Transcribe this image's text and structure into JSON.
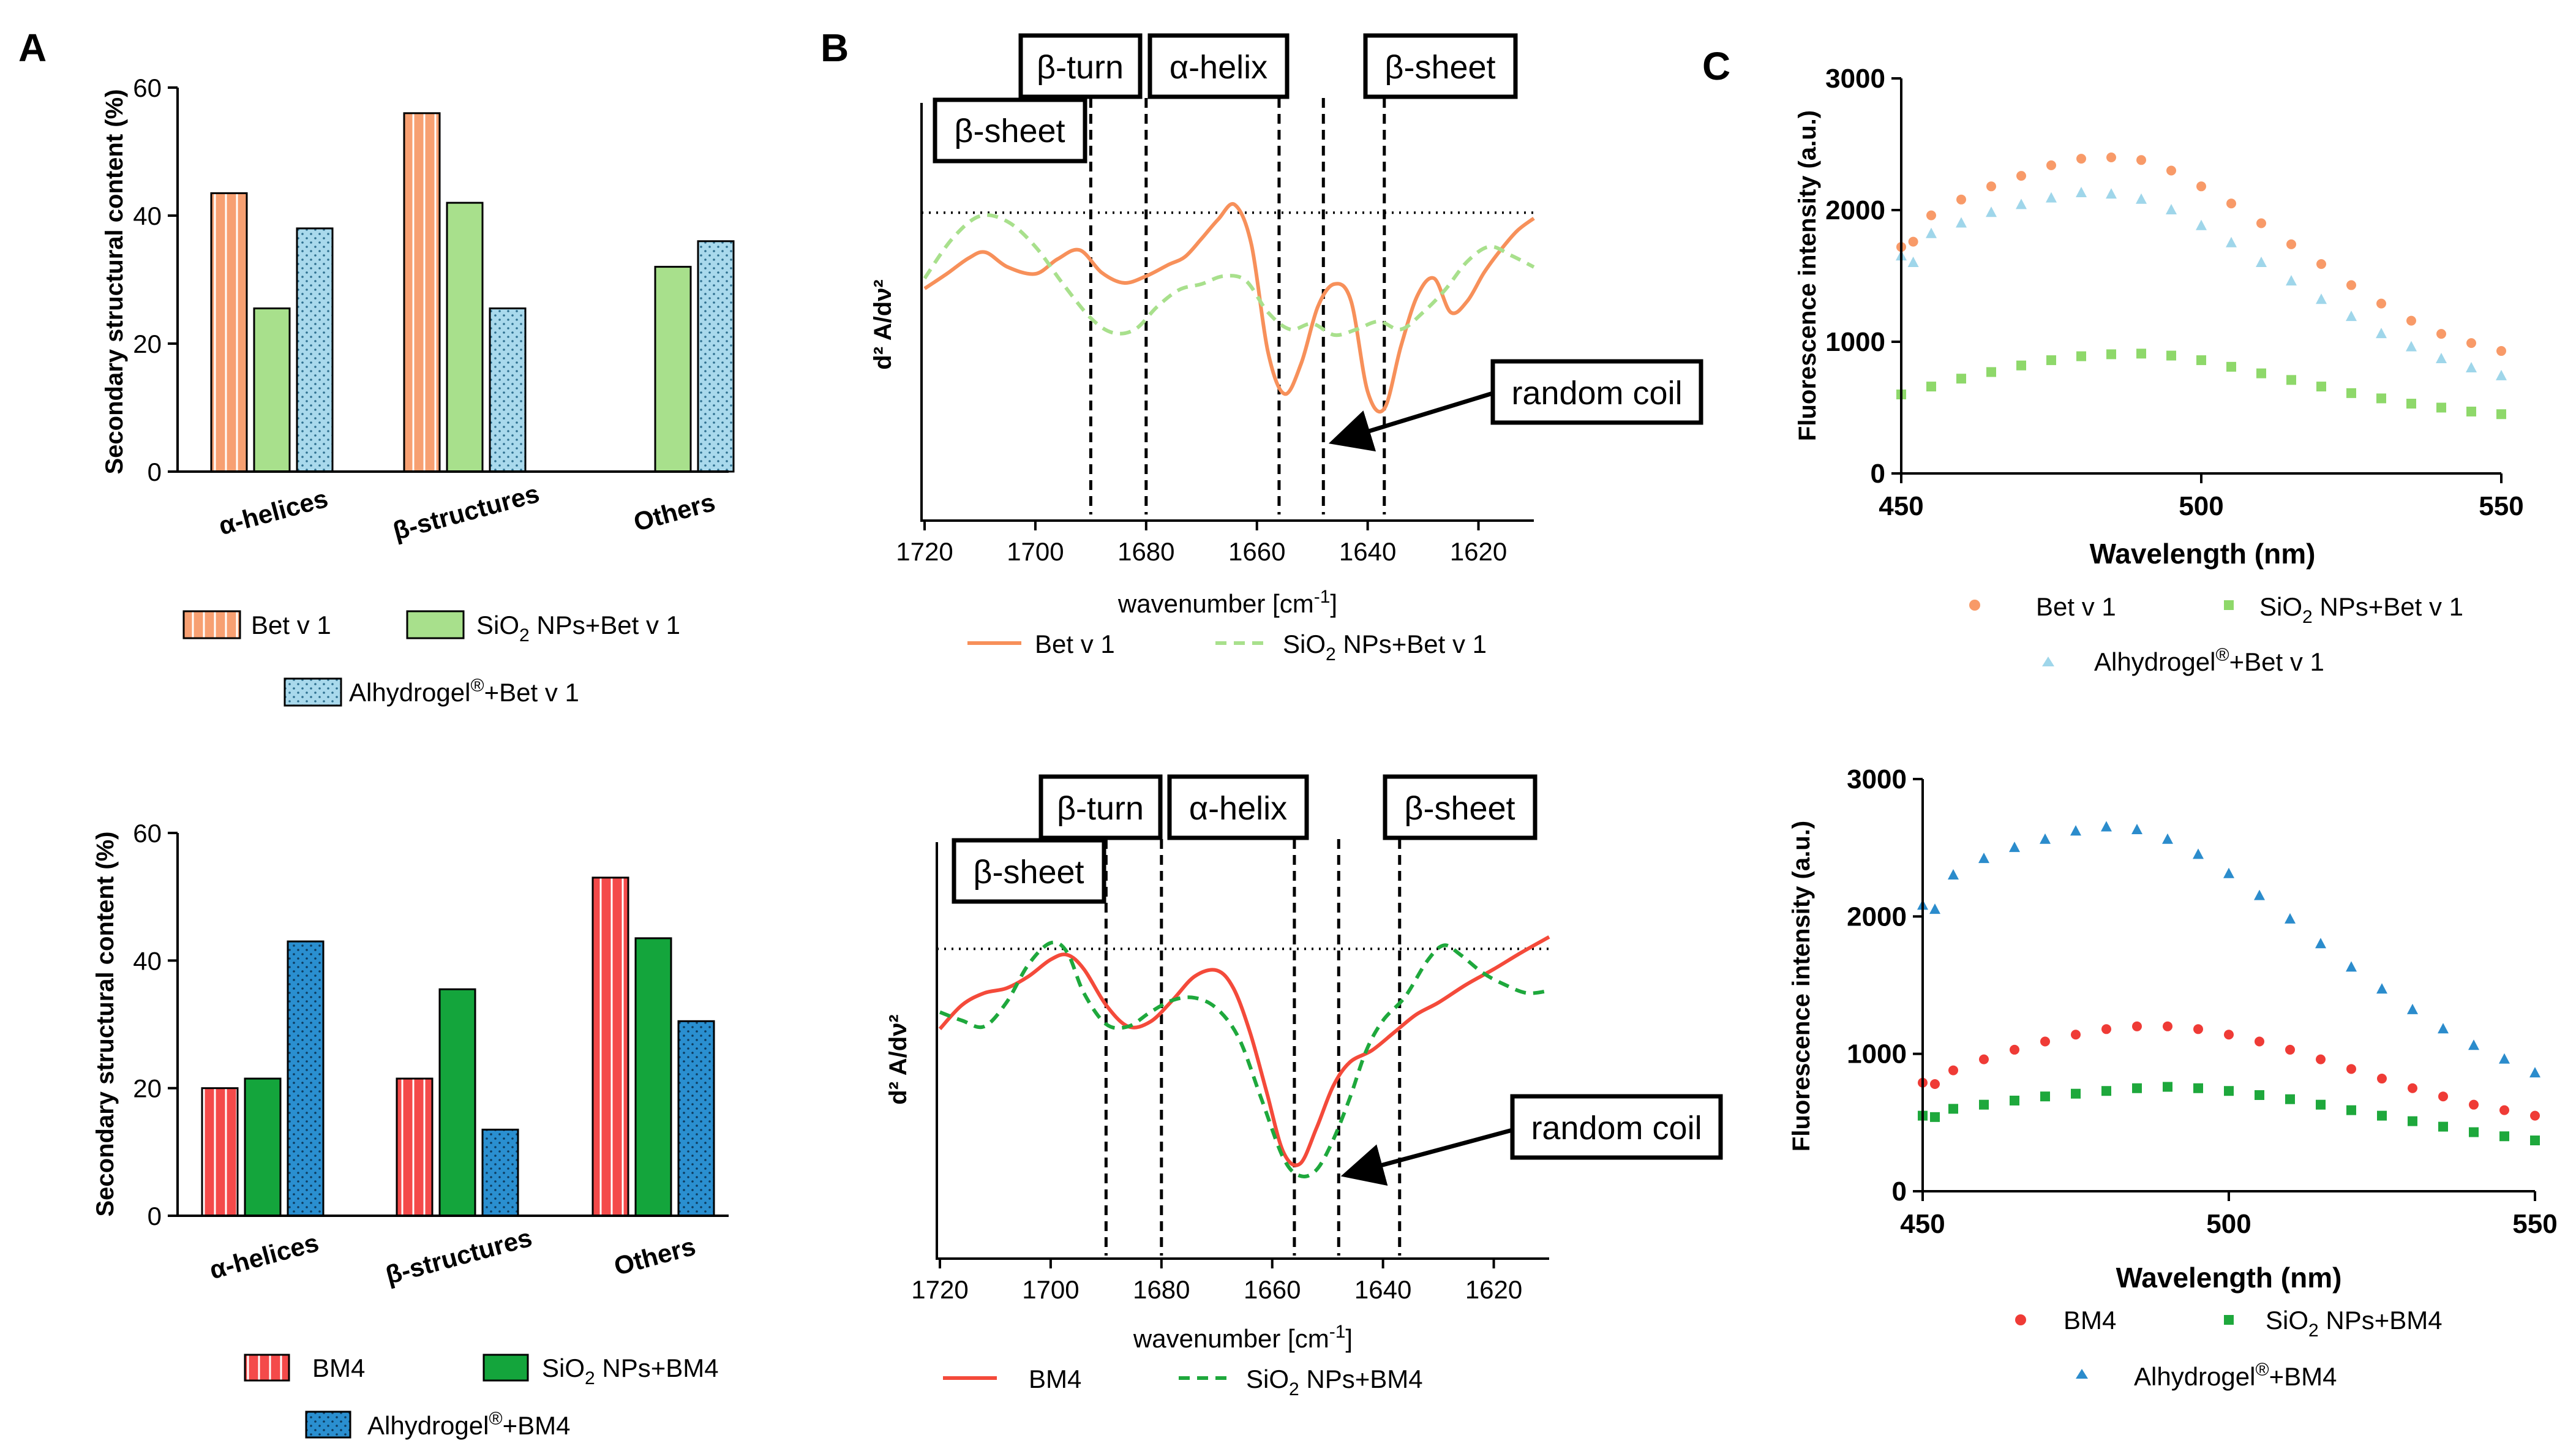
{
  "panel_labels": [
    "A",
    "B",
    "C"
  ],
  "colors": {
    "bet_orange": "#f7a072",
    "bet_green": "#a8e08c",
    "bet_blue": "#a9d9ec",
    "bm4_red": "#f44a4a",
    "bm4_green": "#14a53c",
    "bm4_blue": "#2a8fd0",
    "fluor_bet": "#f89a68",
    "fluor_bet_sio2": "#8ed86a",
    "fluor_bet_alhy": "#9fd6ea",
    "fluor_bm4": "#ef3b36",
    "fluor_bm4_sio2": "#1ea83c",
    "fluor_bm4_alhy": "#2b8ccc"
  },
  "chart_data": [
    {
      "id": "A-top",
      "type": "bar",
      "ylabel": "Secondary structural content (%)",
      "ylim": [
        0,
        60
      ],
      "yticks": [
        "0",
        "20",
        "40",
        "60"
      ],
      "categories": [
        "α-helices",
        "β-structures",
        "Others"
      ],
      "series": [
        {
          "name": "Bet v 1",
          "values": [
            43.5,
            56,
            null
          ]
        },
        {
          "name": "SiO2 NPs+Bet v 1",
          "legend_prefix": "SiO",
          "legend_sub": "2",
          "legend_suffix": " NPs+Bet v 1",
          "values": [
            25.5,
            42,
            32
          ]
        },
        {
          "name": "Alhydrogel®+Bet v 1",
          "legend_prefix": "Alhydrogel",
          "legend_sup": "®",
          "legend_suffix": "+Bet v 1",
          "values": [
            38,
            25.5,
            36
          ]
        }
      ]
    },
    {
      "id": "A-bottom",
      "type": "bar",
      "ylabel": "Secondary structural content (%)",
      "ylim": [
        0,
        60
      ],
      "yticks": [
        "0",
        "20",
        "40",
        "60"
      ],
      "categories": [
        "α-helices",
        "β-structures",
        "Others"
      ],
      "series": [
        {
          "name": "BM4",
          "values": [
            20,
            21.5,
            53
          ]
        },
        {
          "name": "SiO2 NPs+BM4",
          "legend_prefix": "SiO",
          "legend_sub": "2",
          "legend_suffix": " NPs+BM4",
          "values": [
            21.5,
            35.5,
            43.5
          ]
        },
        {
          "name": "Alhydrogel®+BM4",
          "legend_prefix": "Alhydrogel",
          "legend_sup": "®",
          "legend_suffix": "+BM4",
          "values": [
            43,
            13.5,
            30.5
          ]
        }
      ]
    },
    {
      "id": "B-top",
      "type": "line",
      "xlabel_prefix": "wavenumber [cm",
      "xlabel_sup": "-1",
      "xlabel_suffix": "]",
      "ylabel": "d² A/dν²",
      "xlim": [
        1720,
        1610
      ],
      "xticks": [
        "1720",
        "1700",
        "1680",
        "1660",
        "1640",
        "1620"
      ],
      "series": [
        {
          "name": "Bet v 1",
          "style": "solid",
          "x": [
            1720,
            1716,
            1712,
            1709,
            1705,
            1700,
            1696,
            1692,
            1688,
            1684,
            1680,
            1676,
            1673,
            1670,
            1667,
            1664,
            1661,
            1658,
            1655,
            1652,
            1649,
            1646,
            1643,
            1640,
            1637,
            1634,
            1631,
            1628,
            1625,
            1622,
            1619,
            1616,
            1613,
            1610
          ],
          "y": [
            0.21,
            0.34,
            0.48,
            0.53,
            0.4,
            0.34,
            0.47,
            0.55,
            0.35,
            0.26,
            0.32,
            0.42,
            0.49,
            0.65,
            0.82,
            0.95,
            0.6,
            -0.35,
            -0.72,
            -0.45,
            0.05,
            0.25,
            0.1,
            -0.7,
            -0.85,
            -0.3,
            0.15,
            0.3,
            0.0,
            0.1,
            0.35,
            0.55,
            0.72,
            0.83
          ]
        },
        {
          "name": "SiO2 NPs+Bet v 1",
          "legend_prefix": "SiO",
          "legend_sub": "2",
          "legend_suffix": " NPs+Bet v 1",
          "style": "dashed",
          "x": [
            1720,
            1715,
            1710,
            1705,
            1700,
            1695,
            1690,
            1686,
            1682,
            1678,
            1674,
            1670,
            1666,
            1662,
            1658,
            1654,
            1650,
            1646,
            1642,
            1638,
            1634,
            1630,
            1626,
            1622,
            1618,
            1614,
            1610
          ],
          "y": [
            0.3,
            0.65,
            0.85,
            0.8,
            0.58,
            0.25,
            -0.05,
            -0.18,
            -0.15,
            0.05,
            0.2,
            0.25,
            0.32,
            0.28,
            0.0,
            -0.15,
            -0.1,
            -0.2,
            -0.15,
            -0.08,
            -0.15,
            0.0,
            0.2,
            0.45,
            0.58,
            0.5,
            0.4
          ]
        }
      ],
      "reference_line_y": 0.88,
      "vlines": [
        1690,
        1680,
        1656,
        1648,
        1637
      ],
      "annotations": [
        "β-sheet",
        "β-turn",
        "α-helix",
        "β-sheet",
        "random coil"
      ]
    },
    {
      "id": "B-bottom",
      "type": "line",
      "xlabel_prefix": "wavenumber [cm",
      "xlabel_sup": "-1",
      "xlabel_suffix": "]",
      "ylabel": "d² A/dν²",
      "xlim": [
        1720,
        1610
      ],
      "xticks": [
        "1720",
        "1700",
        "1680",
        "1660",
        "1640",
        "1620"
      ],
      "series": [
        {
          "name": "BM4",
          "style": "solid",
          "x": [
            1720,
            1716,
            1712,
            1708,
            1704,
            1700,
            1697,
            1694,
            1690,
            1686,
            1682,
            1678,
            1674,
            1670,
            1667,
            1664,
            1661,
            1658,
            1655,
            1652,
            1649,
            1646,
            1642,
            1638,
            1634,
            1630,
            1625,
            1620,
            1615,
            1610
          ],
          "y": [
            0.18,
            0.38,
            0.48,
            0.52,
            0.62,
            0.76,
            0.8,
            0.68,
            0.38,
            0.2,
            0.24,
            0.42,
            0.62,
            0.67,
            0.52,
            0.15,
            -0.35,
            -0.85,
            -0.95,
            -0.65,
            -0.3,
            -0.1,
            0.0,
            0.15,
            0.3,
            0.4,
            0.55,
            0.68,
            0.82,
            0.95
          ]
        },
        {
          "name": "SiO2 NPs+BM4",
          "legend_prefix": "SiO",
          "legend_sub": "2",
          "legend_suffix": " NPs+BM4",
          "style": "dashed",
          "x": [
            1720,
            1716,
            1712,
            1708,
            1704,
            1700,
            1697,
            1694,
            1690,
            1686,
            1682,
            1678,
            1674,
            1670,
            1666,
            1662,
            1658,
            1655,
            1652,
            1649,
            1646,
            1643,
            1640,
            1636,
            1632,
            1629,
            1626,
            1622,
            1618,
            1614,
            1610
          ],
          "y": [
            0.32,
            0.25,
            0.2,
            0.4,
            0.72,
            0.9,
            0.82,
            0.48,
            0.22,
            0.2,
            0.32,
            0.42,
            0.44,
            0.35,
            0.1,
            -0.4,
            -0.9,
            -1.05,
            -1.0,
            -0.75,
            -0.4,
            0.0,
            0.25,
            0.45,
            0.75,
            0.88,
            0.8,
            0.65,
            0.55,
            0.48,
            0.5
          ]
        }
      ],
      "reference_line_y": 0.85,
      "vlines": [
        1690,
        1680,
        1656,
        1648,
        1637
      ],
      "annotations": [
        "β-sheet",
        "β-turn",
        "α-helix",
        "β-sheet",
        "random coil"
      ]
    },
    {
      "id": "C-top",
      "type": "scatter",
      "xlabel": "Wavelength (nm)",
      "ylabel": "Fluorescence intensity (a.u.)",
      "xlim": [
        450,
        550
      ],
      "ylim": [
        0,
        3000
      ],
      "xticks": [
        "450",
        "500",
        "550"
      ],
      "yticks": [
        "0",
        "1000",
        "2000",
        "3000"
      ],
      "series": [
        {
          "name": "Bet v 1",
          "marker": "circle",
          "x": [
            450,
            452,
            455,
            460,
            465,
            470,
            475,
            480,
            485,
            490,
            495,
            500,
            505,
            510,
            515,
            520,
            525,
            530,
            535,
            540,
            545,
            550
          ],
          "y": [
            1720,
            1760,
            1960,
            2080,
            2180,
            2260,
            2340,
            2390,
            2400,
            2380,
            2300,
            2180,
            2050,
            1900,
            1740,
            1590,
            1430,
            1290,
            1160,
            1060,
            990,
            930
          ]
        },
        {
          "name": "SiO2 NPs+Bet v 1",
          "legend_prefix": "SiO",
          "legend_sub": "2",
          "legend_suffix": " NPs+Bet v 1",
          "marker": "square",
          "x": [
            450,
            455,
            460,
            465,
            470,
            475,
            480,
            485,
            490,
            495,
            500,
            505,
            510,
            515,
            520,
            525,
            530,
            535,
            540,
            545,
            550
          ],
          "y": [
            600,
            660,
            720,
            770,
            820,
            860,
            890,
            905,
            910,
            895,
            860,
            810,
            760,
            710,
            660,
            610,
            570,
            530,
            500,
            470,
            450
          ]
        },
        {
          "name": "Alhydrogel®+Bet v 1",
          "legend_prefix": "Alhydrogel",
          "legend_sup": "®",
          "legend_suffix": "+Bet v 1",
          "marker": "triangle",
          "x": [
            450,
            452,
            455,
            460,
            465,
            470,
            475,
            480,
            485,
            490,
            495,
            500,
            505,
            510,
            515,
            520,
            525,
            530,
            535,
            540,
            545,
            550
          ],
          "y": [
            1650,
            1600,
            1820,
            1900,
            1980,
            2040,
            2090,
            2130,
            2120,
            2080,
            2000,
            1880,
            1750,
            1600,
            1460,
            1320,
            1190,
            1060,
            960,
            870,
            800,
            740
          ]
        }
      ]
    },
    {
      "id": "C-bottom",
      "type": "scatter",
      "xlabel": "Wavelength (nm)",
      "ylabel": "Fluorescence intensity (a.u.)",
      "xlim": [
        450,
        550
      ],
      "ylim": [
        0,
        3000
      ],
      "xticks": [
        "450",
        "500",
        "550"
      ],
      "yticks": [
        "0",
        "1000",
        "2000",
        "3000"
      ],
      "series": [
        {
          "name": "BM4",
          "marker": "circle",
          "x": [
            450,
            452,
            455,
            460,
            465,
            470,
            475,
            480,
            485,
            490,
            495,
            500,
            505,
            510,
            515,
            520,
            525,
            530,
            535,
            540,
            545,
            550
          ],
          "y": [
            790,
            780,
            880,
            960,
            1030,
            1090,
            1140,
            1180,
            1200,
            1200,
            1180,
            1140,
            1090,
            1030,
            960,
            890,
            820,
            750,
            690,
            630,
            590,
            550
          ]
        },
        {
          "name": "SiO2 NPs+BM4",
          "legend_prefix": "SiO",
          "legend_sub": "2",
          "legend_suffix": " NPs+BM4",
          "marker": "square",
          "x": [
            450,
            452,
            455,
            460,
            465,
            470,
            475,
            480,
            485,
            490,
            495,
            500,
            505,
            510,
            515,
            520,
            525,
            530,
            535,
            540,
            545,
            550
          ],
          "y": [
            550,
            540,
            600,
            630,
            660,
            690,
            710,
            730,
            750,
            760,
            750,
            730,
            700,
            670,
            630,
            590,
            550,
            510,
            470,
            430,
            400,
            370
          ]
        },
        {
          "name": "Alhydrogel®+BM4",
          "legend_prefix": "Alhydrogel",
          "legend_sup": "®",
          "legend_suffix": "+BM4",
          "marker": "triangle",
          "x": [
            450,
            452,
            455,
            460,
            465,
            470,
            475,
            480,
            485,
            490,
            495,
            500,
            505,
            510,
            515,
            520,
            525,
            530,
            535,
            540,
            545,
            550
          ],
          "y": [
            2080,
            2050,
            2300,
            2420,
            2500,
            2560,
            2620,
            2650,
            2630,
            2560,
            2450,
            2310,
            2150,
            1980,
            1800,
            1630,
            1470,
            1320,
            1180,
            1060,
            960,
            860
          ]
        }
      ]
    }
  ]
}
